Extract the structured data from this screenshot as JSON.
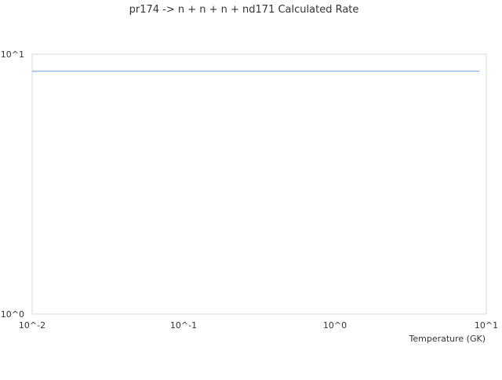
{
  "chart_data": {
    "type": "line",
    "title": "pr174 -> n + n + n + nd171 Calculated Rate",
    "xlabel": "Temperature (GK)",
    "ylabel": "",
    "x_scale": "log",
    "y_scale": "log",
    "xlim": [
      0.01,
      10
    ],
    "ylim": [
      1,
      10
    ],
    "x_ticks": [
      0.01,
      0.1,
      1,
      10
    ],
    "x_tick_labels": [
      "10^-2",
      "10^-1",
      "10^0",
      "10^1"
    ],
    "y_ticks": [
      1,
      10
    ],
    "y_tick_labels": [
      "10^0",
      "10^1"
    ],
    "grid": false,
    "legend": "none",
    "series": [
      {
        "color": "#5b9fe6",
        "x": [
          0.01,
          9.0
        ],
        "y": [
          8.6,
          8.6
        ]
      }
    ]
  }
}
